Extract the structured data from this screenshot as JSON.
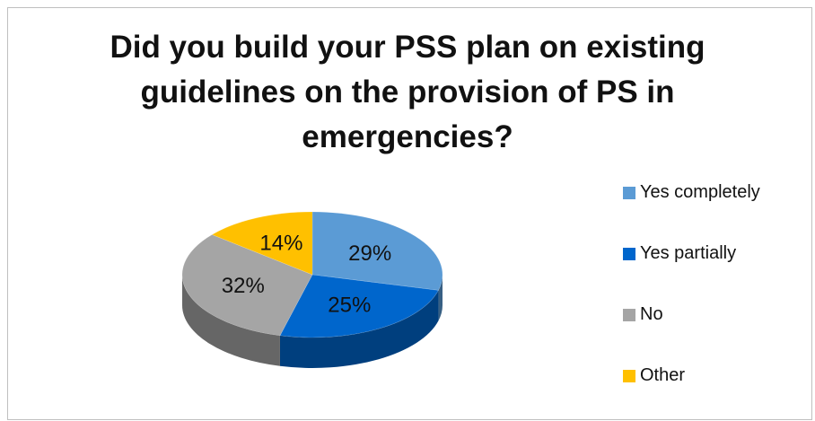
{
  "chart_data": {
    "type": "pie",
    "title_lines": [
      "Did you build your PSS plan on existing",
      "guidelines on the provision of PS in",
      "emergencies?"
    ],
    "categories": [
      "Yes completely",
      "Yes partially",
      "No",
      "Other"
    ],
    "values": [
      29,
      25,
      32,
      14
    ],
    "labels": [
      "29%",
      "25%",
      "32%",
      "14%"
    ],
    "colors": [
      "#5b9bd5",
      "#0066cc",
      "#a5a5a5",
      "#ffc000"
    ],
    "legend_position": "right",
    "style": "3d"
  }
}
